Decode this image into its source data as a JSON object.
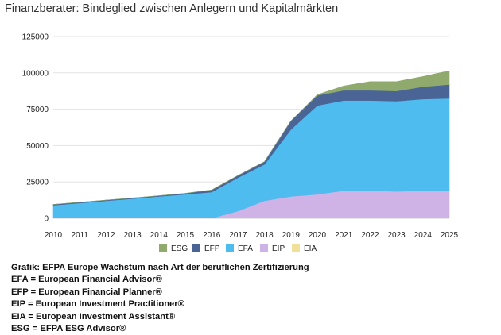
{
  "page_title": "Finanzberater: Bindeglied zwischen Anlegern und Kapitalmärkten",
  "notes": [
    "Grafik:  EFPA Europe Wachstum nach Art der beruflichen Zertifizierung",
    "EFA = European Financial Advisor®",
    "EFP = European Financial Planner®",
    "EIP = European Investment Practitioner®",
    "EIA = European Investment Assistant®",
    "ESG = EFPA ESG Advisor®"
  ],
  "colors": {
    "ESG": "#8faa6c",
    "EFP": "#4a6496",
    "EFA": "#4fbcef",
    "EIP": "#cfb2e6",
    "EIA": "#efe09a",
    "grid": "#e3e3e3"
  },
  "chart_data": {
    "type": "area",
    "stacked": true,
    "title": "",
    "xlabel": "",
    "ylabel": "",
    "x": [
      "2010",
      "2011",
      "2012",
      "2013",
      "2014",
      "2015",
      "2016",
      "2017",
      "2018",
      "2019",
      "2020",
      "2021",
      "2022",
      "2023",
      "2024",
      "2025"
    ],
    "ylim": [
      0,
      125000
    ],
    "yticks": [
      0,
      25000,
      50000,
      75000,
      100000,
      125000
    ],
    "ytick_labels": [
      "0",
      "25000",
      "50000",
      "75000",
      "100000",
      "125000"
    ],
    "grid": true,
    "legend_position": "bottom",
    "series": [
      {
        "name": "EIA",
        "values": [
          0,
          0,
          0,
          0,
          0,
          0,
          0,
          0,
          0,
          0,
          0,
          500,
          500,
          500,
          500,
          500
        ]
      },
      {
        "name": "EIP",
        "values": [
          0,
          0,
          0,
          0,
          0,
          0,
          0,
          5000,
          12000,
          15000,
          16500,
          18500,
          18500,
          18000,
          18500,
          18500
        ]
      },
      {
        "name": "EFA",
        "values": [
          9000,
          10500,
          12000,
          13500,
          15000,
          16500,
          18000,
          23000,
          25000,
          46000,
          61000,
          62000,
          62000,
          62000,
          63000,
          63500
        ]
      },
      {
        "name": "EFP",
        "values": [
          500,
          500,
          500,
          500,
          500,
          700,
          1500,
          1500,
          2000,
          6000,
          7000,
          7000,
          7000,
          7000,
          8500,
          9500
        ]
      },
      {
        "name": "ESG",
        "values": [
          0,
          0,
          0,
          0,
          0,
          0,
          0,
          0,
          0,
          0,
          500,
          3000,
          6000,
          6500,
          7000,
          9500
        ]
      }
    ],
    "legend_order": [
      "ESG",
      "EFP",
      "EFA",
      "EIP",
      "EIA"
    ]
  }
}
